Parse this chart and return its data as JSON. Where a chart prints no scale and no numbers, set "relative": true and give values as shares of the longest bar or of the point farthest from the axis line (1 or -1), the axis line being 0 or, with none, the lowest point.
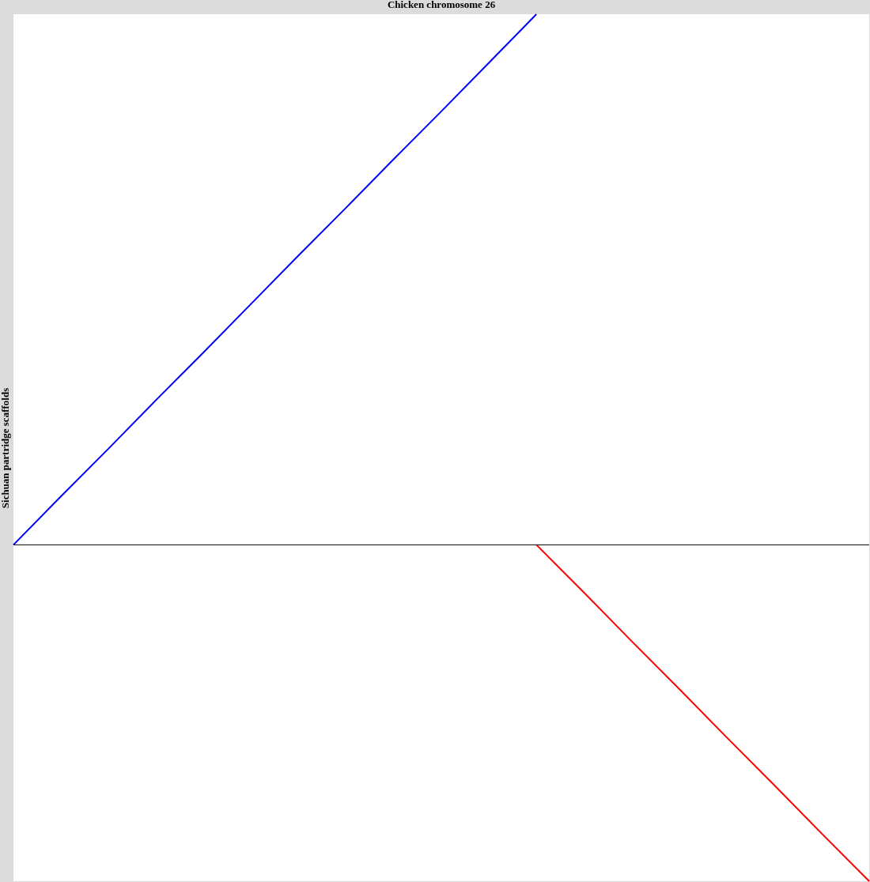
{
  "chart_data": {
    "type": "line",
    "title": "Chicken chromosome 26",
    "ylabel": "Sichuan partridge scaffolds",
    "relative": true,
    "categories": [
      null,
      null,
      null,
      null,
      null,
      null,
      null,
      null,
      null,
      null,
      null,
      null,
      null,
      null,
      null,
      null,
      null,
      null,
      null
    ],
    "series": [
      {
        "color": "#0000ff",
        "values": [
          0.388,
          0.444,
          0.499,
          0.555,
          0.61,
          0.666,
          0.722,
          0.777,
          0.833,
          0.888,
          0.944,
          1,
          null,
          null,
          null,
          null,
          null,
          null,
          null
        ]
      },
      {
        "color": "#ff0000",
        "values": [
          null,
          null,
          null,
          null,
          null,
          null,
          null,
          null,
          null,
          null,
          null,
          0.388,
          0.333,
          0.277,
          0.222,
          0.166,
          0.111,
          0.055,
          0
        ]
      }
    ],
    "ref_lines": [
      {
        "axis": "y",
        "value": 0.388
      }
    ]
  }
}
